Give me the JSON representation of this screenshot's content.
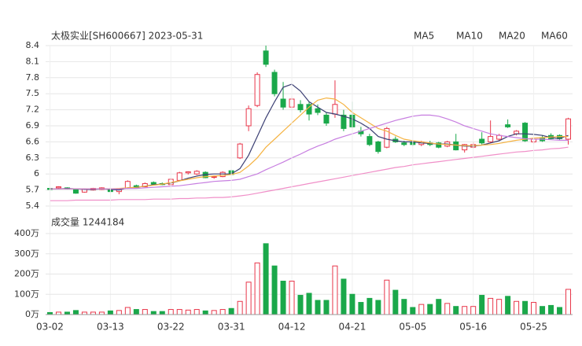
{
  "chart_data": [
    {
      "type": "candlestick",
      "title": "太极实业[SH600667] 2023-05-31",
      "categories": [
        "03-02",
        null,
        null,
        null,
        null,
        null,
        null,
        "03-13",
        null,
        null,
        null,
        null,
        null,
        null,
        "03-22",
        null,
        null,
        null,
        null,
        null,
        null,
        "03-31",
        null,
        null,
        null,
        null,
        null,
        null,
        "04-12",
        null,
        null,
        null,
        null,
        null,
        null,
        "04-21",
        null,
        null,
        null,
        null,
        null,
        null,
        "05-05",
        null,
        null,
        null,
        null,
        null,
        null,
        "05-16",
        null,
        null,
        null,
        null,
        null,
        null,
        "05-25",
        null,
        null,
        null,
        null
      ],
      "open": [
        5.73,
        5.74,
        5.74,
        5.72,
        5.66,
        5.7,
        5.71,
        5.72,
        5.67,
        5.73,
        5.78,
        5.76,
        5.84,
        5.82,
        5.8,
        5.88,
        6.02,
        6.0,
        6.03,
        5.94,
        5.95,
        6.06,
        6.3,
        6.9,
        7.28,
        8.3,
        7.9,
        7.4,
        7.25,
        7.3,
        7.3,
        7.22,
        7.1,
        7.12,
        7.1,
        7.1,
        6.8,
        6.7,
        6.6,
        6.5,
        6.65,
        6.58,
        6.6,
        6.55,
        6.58,
        6.58,
        6.52,
        6.6,
        6.45,
        6.5,
        6.65,
        6.6,
        6.65,
        6.92,
        6.75,
        6.95,
        6.6,
        6.68,
        6.72,
        6.72,
        6.65
      ],
      "high": [
        5.75,
        5.77,
        5.75,
        5.73,
        5.73,
        5.74,
        5.75,
        5.74,
        5.73,
        5.88,
        5.8,
        5.84,
        5.86,
        5.84,
        5.92,
        6.04,
        6.05,
        6.07,
        6.05,
        5.97,
        6.05,
        6.08,
        6.58,
        7.28,
        7.9,
        8.4,
        7.95,
        7.72,
        7.45,
        7.38,
        7.35,
        7.3,
        7.15,
        7.75,
        7.2,
        7.35,
        6.88,
        6.75,
        6.62,
        6.88,
        6.7,
        6.62,
        6.63,
        6.62,
        6.62,
        6.6,
        6.62,
        6.75,
        6.56,
        6.6,
        6.78,
        7.0,
        6.75,
        7.02,
        6.82,
        6.97,
        6.68,
        6.72,
        6.76,
        6.74,
        7.05
      ],
      "low": [
        5.7,
        5.73,
        5.71,
        5.63,
        5.65,
        5.69,
        5.7,
        5.66,
        5.62,
        5.72,
        5.73,
        5.75,
        5.8,
        5.79,
        5.79,
        5.87,
        5.99,
        5.98,
        5.92,
        5.91,
        5.94,
        5.98,
        6.28,
        6.8,
        7.25,
        8.0,
        7.45,
        7.2,
        7.18,
        7.15,
        7.0,
        7.1,
        6.9,
        7.05,
        6.8,
        6.85,
        6.7,
        6.52,
        6.38,
        6.48,
        6.58,
        6.52,
        6.52,
        6.52,
        6.52,
        6.48,
        6.5,
        6.44,
        6.4,
        6.48,
        6.55,
        6.58,
        6.62,
        6.86,
        6.72,
        6.6,
        6.56,
        6.6,
        6.64,
        6.64,
        6.55
      ],
      "close": [
        5.71,
        5.76,
        5.72,
        5.64,
        5.72,
        5.73,
        5.74,
        5.67,
        5.72,
        5.86,
        5.74,
        5.82,
        5.81,
        5.8,
        5.9,
        6.02,
        6.04,
        6.05,
        5.93,
        5.95,
        6.03,
        5.99,
        6.56,
        7.22,
        7.86,
        8.05,
        7.5,
        7.25,
        7.4,
        7.2,
        7.12,
        7.15,
        6.95,
        7.3,
        6.85,
        6.88,
        6.75,
        6.55,
        6.42,
        6.85,
        6.6,
        6.55,
        6.55,
        6.6,
        6.55,
        6.5,
        6.6,
        6.45,
        6.55,
        6.55,
        6.58,
        6.7,
        6.72,
        6.88,
        6.8,
        6.62,
        6.65,
        6.62,
        6.66,
        6.66,
        7.03
      ],
      "up_color": "#e8364a",
      "down_color": "#1aa84a",
      "series": [
        {
          "name": "MA5",
          "color": "#3b3f73",
          "values": [
            5.72,
            5.72,
            5.73,
            5.72,
            5.71,
            5.71,
            5.72,
            5.71,
            5.7,
            5.74,
            5.75,
            5.77,
            5.8,
            5.81,
            5.83,
            5.87,
            5.92,
            5.96,
            5.99,
            6.0,
            6.0,
            6.0,
            6.1,
            6.35,
            6.7,
            7.05,
            7.35,
            7.62,
            7.68,
            7.55,
            7.35,
            7.25,
            7.15,
            7.12,
            7.08,
            7.03,
            6.95,
            6.85,
            6.7,
            6.65,
            6.62,
            6.6,
            6.6,
            6.58,
            6.57,
            6.56,
            6.56,
            6.54,
            6.52,
            6.52,
            6.54,
            6.58,
            6.62,
            6.7,
            6.75,
            6.75,
            6.74,
            6.72,
            6.68,
            6.66,
            6.72
          ]
        },
        {
          "name": "MA10",
          "color": "#f5b342",
          "values": [
            5.72,
            5.72,
            5.72,
            5.72,
            5.72,
            5.72,
            5.72,
            5.72,
            5.73,
            5.74,
            5.75,
            5.77,
            5.79,
            5.81,
            5.84,
            5.87,
            5.9,
            5.93,
            5.95,
            5.96,
            5.97,
            5.99,
            6.03,
            6.15,
            6.3,
            6.5,
            6.65,
            6.8,
            6.95,
            7.1,
            7.25,
            7.38,
            7.42,
            7.4,
            7.3,
            7.15,
            7.05,
            6.95,
            6.85,
            6.8,
            6.72,
            6.65,
            6.62,
            6.6,
            6.58,
            6.56,
            6.55,
            6.54,
            6.53,
            6.53,
            6.54,
            6.55,
            6.57,
            6.6,
            6.63,
            6.65,
            6.67,
            6.68,
            6.69,
            6.7,
            6.7
          ]
        },
        {
          "name": "MA20",
          "color": "#c77ee0",
          "values": [
            5.72,
            5.72,
            5.72,
            5.72,
            5.72,
            5.72,
            5.72,
            5.72,
            5.72,
            5.73,
            5.73,
            5.74,
            5.75,
            5.76,
            5.77,
            5.78,
            5.8,
            5.82,
            5.84,
            5.86,
            5.87,
            5.88,
            5.9,
            5.95,
            6.0,
            6.08,
            6.15,
            6.22,
            6.3,
            6.37,
            6.45,
            6.52,
            6.58,
            6.65,
            6.7,
            6.75,
            6.8,
            6.85,
            6.9,
            6.95,
            7.0,
            7.04,
            7.08,
            7.1,
            7.1,
            7.08,
            7.03,
            6.97,
            6.9,
            6.85,
            6.8,
            6.75,
            6.72,
            6.7,
            6.68,
            6.66,
            6.65,
            6.65,
            6.64,
            6.63,
            6.63
          ]
        },
        {
          "name": "MA60",
          "color": "#f08fc8",
          "values": [
            5.5,
            5.5,
            5.5,
            5.51,
            5.51,
            5.51,
            5.51,
            5.51,
            5.52,
            5.52,
            5.52,
            5.52,
            5.53,
            5.53,
            5.53,
            5.54,
            5.54,
            5.55,
            5.55,
            5.56,
            5.56,
            5.57,
            5.59,
            5.61,
            5.64,
            5.67,
            5.7,
            5.73,
            5.76,
            5.79,
            5.82,
            5.85,
            5.88,
            5.91,
            5.94,
            5.97,
            6.0,
            6.03,
            6.06,
            6.09,
            6.12,
            6.14,
            6.17,
            6.19,
            6.21,
            6.23,
            6.25,
            6.27,
            6.29,
            6.31,
            6.33,
            6.35,
            6.37,
            6.39,
            6.41,
            6.42,
            6.44,
            6.45,
            6.47,
            6.48,
            6.5
          ]
        }
      ],
      "ylim": [
        5.4,
        8.4
      ],
      "yticks": [
        8.4,
        8.1,
        7.8,
        7.5,
        7.2,
        6.9,
        6.6,
        6.3,
        6,
        5.7,
        5.4
      ],
      "grid": true
    },
    {
      "type": "bar",
      "title": "成交量 1244184",
      "values": [
        10,
        12,
        12,
        20,
        12,
        12,
        12,
        18,
        20,
        35,
        25,
        25,
        15,
        15,
        25,
        25,
        22,
        25,
        18,
        20,
        25,
        30,
        65,
        160,
        255,
        350,
        240,
        165,
        165,
        95,
        105,
        70,
        70,
        240,
        175,
        100,
        60,
        80,
        70,
        170,
        120,
        75,
        35,
        50,
        50,
        75,
        55,
        40,
        40,
        40,
        95,
        80,
        75,
        90,
        65,
        65,
        60,
        40,
        45,
        35,
        124.4184
      ],
      "ylim": [
        0,
        400
      ],
      "yticks": [
        {
          "value": 400,
          "label": "400万"
        },
        {
          "value": 300,
          "label": "300万"
        },
        {
          "value": 200,
          "label": "200万"
        },
        {
          "value": 100,
          "label": "100万"
        },
        {
          "value": 0,
          "label": "0万"
        }
      ],
      "grid": true
    }
  ]
}
